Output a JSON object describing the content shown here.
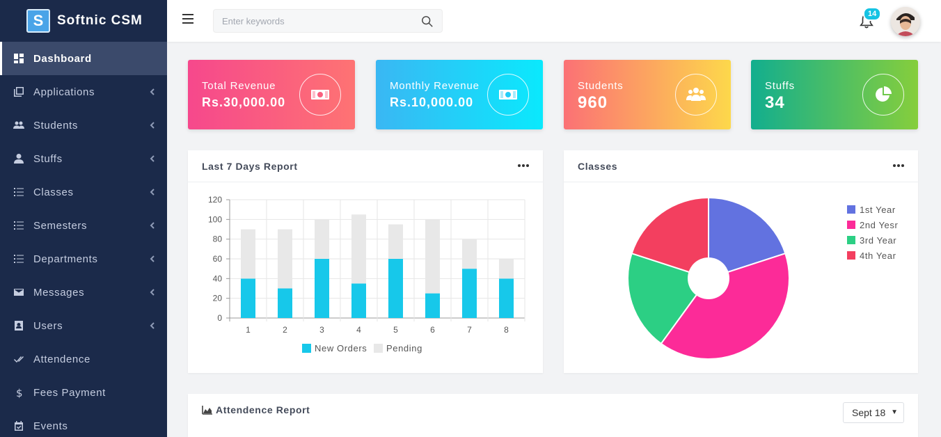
{
  "brand": {
    "logo_letter": "S",
    "name": "Softnic CSM"
  },
  "sidebar": {
    "items": [
      {
        "label": "Dashboard",
        "icon": "dashboard-icon",
        "active": true,
        "chevron": false
      },
      {
        "label": "Applications",
        "icon": "applications-icon",
        "chevron": true
      },
      {
        "label": "Students",
        "icon": "students-icon",
        "chevron": true
      },
      {
        "label": "Stuffs",
        "icon": "user-icon",
        "chevron": true
      },
      {
        "label": "Classes",
        "icon": "list-icon",
        "chevron": true
      },
      {
        "label": "Semesters",
        "icon": "list-icon",
        "chevron": true
      },
      {
        "label": "Departments",
        "icon": "list-icon",
        "chevron": true
      },
      {
        "label": "Messages",
        "icon": "mail-icon",
        "chevron": true
      },
      {
        "label": "Users",
        "icon": "id-card-icon",
        "chevron": true
      },
      {
        "label": "Attendence",
        "icon": "check-icon",
        "chevron": false
      },
      {
        "label": "Fees Payment",
        "icon": "dollar-icon",
        "chevron": false
      },
      {
        "label": "Events",
        "icon": "calendar-icon",
        "chevron": false
      }
    ]
  },
  "topbar": {
    "search_placeholder": "Enter keywords",
    "notifications_count": "14"
  },
  "cards": [
    {
      "label": "Total Revenue",
      "value": "Rs.30,000.00",
      "icon": "money-icon"
    },
    {
      "label": "Monthly Revenue",
      "value": "Rs.10,000.00",
      "icon": "money-icon"
    },
    {
      "label": "Students",
      "value": "960",
      "icon": "group-icon"
    },
    {
      "label": "Stuffs",
      "value": "34",
      "icon": "pie-chart-icon"
    }
  ],
  "report_panel": {
    "title": "Last 7 Days Report"
  },
  "classes_panel": {
    "title": "Classes"
  },
  "attendance_panel": {
    "title": "Attendence Report",
    "selected": "Sept 18"
  },
  "chart_data": [
    {
      "type": "bar",
      "stacked": true,
      "categories": [
        "1",
        "2",
        "3",
        "4",
        "5",
        "6",
        "7",
        "8"
      ],
      "series": [
        {
          "name": "New Orders",
          "values": [
            40,
            30,
            60,
            35,
            60,
            25,
            50,
            40
          ],
          "color": "#17c8ea"
        },
        {
          "name": "Pending",
          "values": [
            50,
            60,
            40,
            70,
            35,
            75,
            30,
            20
          ],
          "color": "#e8e8e8"
        }
      ],
      "yticks": [
        "0",
        "20",
        "40",
        "60",
        "80",
        "100",
        "120"
      ],
      "ylim": [
        0,
        120
      ],
      "grid": true,
      "legend": "bottom"
    },
    {
      "type": "pie",
      "donut": true,
      "slices": [
        {
          "name": "1st Year",
          "value": 20,
          "color": "#6272e0"
        },
        {
          "name": "2nd Yesr",
          "value": 40,
          "color": "#fc2b98"
        },
        {
          "name": "3rd Year",
          "value": 20,
          "color": "#2ccf84"
        },
        {
          "name": "4th Year",
          "value": 20,
          "color": "#f33f5f"
        }
      ],
      "legend": "right"
    }
  ]
}
